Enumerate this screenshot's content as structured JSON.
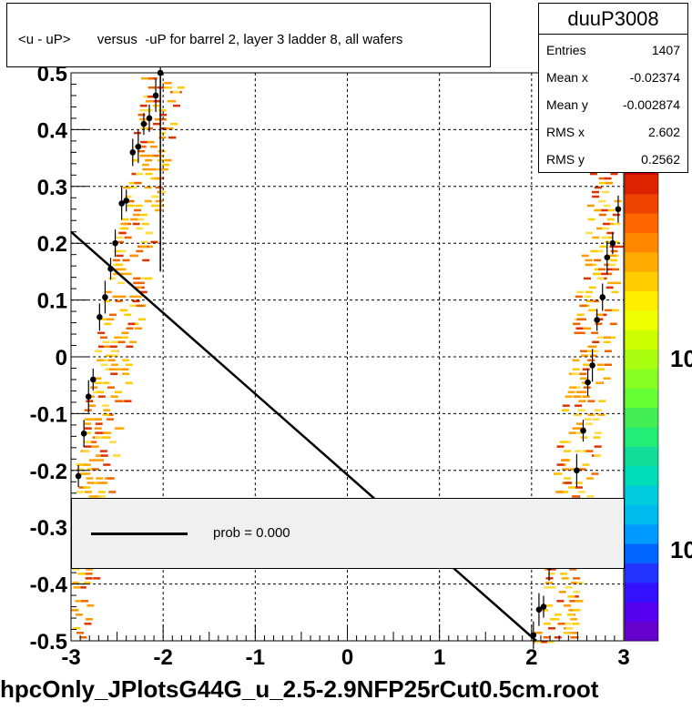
{
  "chart_data": {
    "type": "scatter",
    "title": "<u - uP>       versus  -uP for barrel 2, layer 3 ladder 8, all wafers",
    "histogram_name": "duuP3008",
    "xlim": [
      -3,
      3
    ],
    "ylim": [
      -0.5,
      0.5
    ],
    "x_ticks": [
      "-3",
      "-2",
      "-1",
      "0",
      "1",
      "2",
      "3"
    ],
    "y_ticks": [
      "0.5",
      "0.4",
      "0.3",
      "0.2",
      "0.1",
      "0",
      "-0.1",
      "-0.2",
      "-0.3",
      "-0.4",
      "-0.5"
    ],
    "grid": true,
    "stats": [
      {
        "key": "Entries",
        "value": "1407"
      },
      {
        "key": "Mean x",
        "value": "-0.02374"
      },
      {
        "key": "Mean y",
        "value": "-0.002874"
      },
      {
        "key": "RMS x",
        "value": "2.602"
      },
      {
        "key": "RMS y",
        "value": "0.2562"
      }
    ],
    "profile_points": [
      {
        "x": -2.92,
        "y": -0.21
      },
      {
        "x": -2.86,
        "y": -0.135
      },
      {
        "x": -2.81,
        "y": -0.07
      },
      {
        "x": -2.76,
        "y": -0.04
      },
      {
        "x": -2.69,
        "y": 0.07
      },
      {
        "x": -2.63,
        "y": 0.105
      },
      {
        "x": -2.57,
        "y": 0.155
      },
      {
        "x": -2.52,
        "y": 0.2
      },
      {
        "x": -2.45,
        "y": 0.27
      },
      {
        "x": -2.4,
        "y": 0.275
      },
      {
        "x": -2.33,
        "y": 0.36
      },
      {
        "x": -2.27,
        "y": 0.37
      },
      {
        "x": -2.21,
        "y": 0.41
      },
      {
        "x": -2.15,
        "y": 0.42
      },
      {
        "x": -2.08,
        "y": 0.46
      },
      {
        "x": -2.03,
        "y": 0.5
      },
      {
        "x": 2.02,
        "y": -0.49
      },
      {
        "x": 2.08,
        "y": -0.445
      },
      {
        "x": 2.13,
        "y": -0.44
      },
      {
        "x": 2.19,
        "y": -0.37
      },
      {
        "x": 2.49,
        "y": -0.2
      },
      {
        "x": 2.56,
        "y": -0.13
      },
      {
        "x": 2.61,
        "y": -0.045
      },
      {
        "x": 2.66,
        "y": -0.015
      },
      {
        "x": 2.71,
        "y": 0.065
      },
      {
        "x": 2.77,
        "y": 0.105
      },
      {
        "x": 2.82,
        "y": 0.175
      },
      {
        "x": 2.88,
        "y": 0.2
      },
      {
        "x": 2.94,
        "y": 0.26
      }
    ],
    "fit_line": {
      "x": [
        -3,
        2.05
      ],
      "y": [
        0.22,
        -0.5
      ]
    },
    "legend": {
      "label": "prob = 0.000"
    },
    "colorbar_labels": [
      "10",
      "10"
    ]
  },
  "filename": "hpcOnly_JPlotsG44G_u_2.5-2.9NFP25rCut0.5cm.root"
}
